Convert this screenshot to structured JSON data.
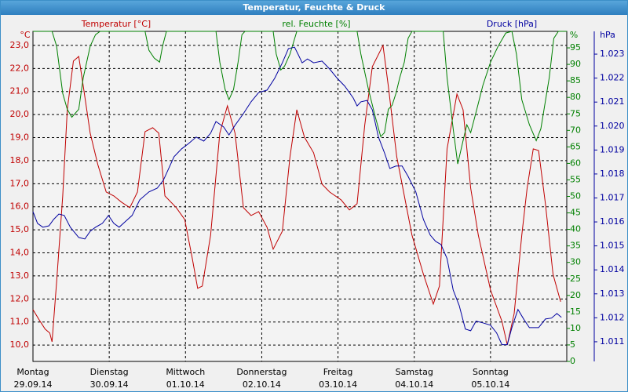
{
  "chart_data": {
    "type": "line",
    "title": "Temperatur, Feuchte & Druck",
    "y_unit": "°C",
    "y2_unit": "%",
    "y3_unit": "hPa",
    "xlim": [
      0,
      7
    ],
    "xticks": [
      {
        "value": 0,
        "label": "Montag"
      },
      {
        "value": 1,
        "label": "Dienstag"
      },
      {
        "value": 2,
        "label": "Mittwoch"
      },
      {
        "value": 3,
        "label": "Donnerstag"
      },
      {
        "value": 4,
        "label": "Freitag"
      },
      {
        "value": 5,
        "label": "Samstag"
      },
      {
        "value": 6,
        "label": "Sonntag"
      }
    ],
    "xtick_dates": [
      "29.09.14",
      "30.09.14",
      "01.10.14",
      "02.10.14",
      "03.10.14",
      "04.10.14",
      "05.10.14"
    ],
    "ylim": [
      9.29,
      23.61
    ],
    "yticks": [
      {
        "value": 10,
        "label": "10,0"
      },
      {
        "value": 11,
        "label": "11,0"
      },
      {
        "value": 12,
        "label": "12,0"
      },
      {
        "value": 13,
        "label": "13,0"
      },
      {
        "value": 14,
        "label": "14,0"
      },
      {
        "value": 15,
        "label": "15,0"
      },
      {
        "value": 16,
        "label": "16,0"
      },
      {
        "value": 17,
        "label": "17,0"
      },
      {
        "value": 18,
        "label": "18,0"
      },
      {
        "value": 19,
        "label": "19,0"
      },
      {
        "value": 20,
        "label": "20,0"
      },
      {
        "value": 21,
        "label": "21,0"
      },
      {
        "value": 22,
        "label": "22,0"
      },
      {
        "value": 23,
        "label": "23,0"
      }
    ],
    "y2lim": [
      0,
      100
    ],
    "y2ticks": [
      0,
      5,
      10,
      15,
      20,
      25,
      30,
      35,
      40,
      45,
      50,
      55,
      60,
      65,
      70,
      75,
      80,
      85,
      90,
      95
    ],
    "y3lim": [
      1.01018,
      1.02395
    ],
    "y3ticks": [
      1.011,
      1.012,
      1.013,
      1.014,
      1.015,
      1.016,
      1.017,
      1.018,
      1.019,
      {
        "value": 1.02,
        "label": "1.020"
      },
      1.021,
      1.022,
      1.023
    ],
    "grid": true,
    "series": [
      {
        "name": "Temperatur [°C]",
        "color": "#c00000",
        "axis": "y",
        "x": [
          0,
          0.08,
          0.16,
          0.22,
          0.25,
          0.31,
          0.39,
          0.45,
          0.53,
          0.6,
          0.66,
          0.75,
          0.85,
          0.96,
          1.06,
          1.16,
          1.27,
          1.37,
          1.47,
          1.57,
          1.65,
          1.73,
          1.88,
          1.99,
          2.09,
          2.16,
          2.22,
          2.33,
          2.45,
          2.55,
          2.65,
          2.76,
          2.86,
          2.96,
          3.07,
          3.15,
          3.27,
          3.37,
          3.46,
          3.56,
          3.68,
          3.79,
          3.89,
          4.04,
          4.15,
          4.25,
          4.35,
          4.45,
          4.59,
          4.66,
          4.77,
          4.87,
          4.97,
          5.12,
          5.25,
          5.33,
          5.43,
          5.56,
          5.64,
          5.74,
          5.84,
          6.0,
          6.15,
          6.22,
          6.31,
          6.41,
          6.48,
          6.56,
          6.63,
          6.72,
          6.82,
          6.92
        ],
        "values": [
          11.54,
          11.1,
          10.69,
          10.52,
          10.14,
          12.73,
          16.47,
          20.21,
          22.32,
          22.52,
          21.23,
          19.19,
          17.83,
          16.64,
          16.47,
          16.2,
          15.96,
          16.64,
          19.26,
          19.43,
          19.19,
          16.47,
          15.96,
          15.45,
          13.75,
          12.46,
          12.56,
          14.77,
          19.19,
          20.38,
          19.19,
          15.96,
          15.62,
          15.79,
          15.11,
          14.16,
          14.94,
          18.17,
          20.21,
          19.02,
          18.34,
          16.98,
          16.64,
          16.3,
          15.86,
          16.13,
          19.53,
          22.08,
          23.0,
          21.23,
          18.17,
          16.47,
          14.77,
          13.07,
          11.78,
          12.56,
          18.51,
          20.89,
          20.21,
          16.81,
          14.77,
          12.39,
          11.03,
          10.01,
          11.37,
          14.77,
          16.81,
          18.51,
          18.44,
          16.13,
          13.07,
          11.88
        ]
      },
      {
        "name": "rel. Feuchte [%]",
        "color": "#008000",
        "axis": "y2",
        "x": [
          0,
          0.25,
          0.31,
          0.39,
          0.45,
          0.51,
          0.6,
          0.66,
          0.75,
          0.82,
          0.88,
          1.47,
          1.52,
          1.59,
          1.66,
          1.7,
          1.75,
          2.4,
          2.45,
          2.52,
          2.57,
          2.63,
          2.69,
          2.74,
          2.78,
          3.15,
          3.19,
          3.25,
          3.3,
          3.37,
          3.46,
          4.25,
          4.3,
          4.4,
          4.49,
          4.56,
          4.61,
          4.66,
          4.71,
          4.76,
          4.81,
          4.87,
          4.92,
          4.97,
          5.38,
          5.43,
          5.51,
          5.57,
          5.64,
          5.69,
          5.74,
          5.82,
          5.9,
          6.0,
          6.1,
          6.2,
          6.28,
          6.34,
          6.41,
          6.51,
          6.6,
          6.66,
          6.77,
          6.83,
          6.89,
          7
        ],
        "values": [
          100,
          100,
          95.5,
          81.2,
          76.4,
          74.0,
          76.4,
          86.0,
          95.5,
          99.0,
          100,
          100,
          94.3,
          91.9,
          90.7,
          95.5,
          100,
          100,
          90.7,
          82.4,
          79.3,
          82.4,
          90.7,
          99.0,
          100,
          100,
          93.1,
          88.3,
          89.5,
          93.1,
          100,
          100,
          93.1,
          82.4,
          74.0,
          68.1,
          69.3,
          76.4,
          77.6,
          81.2,
          86.0,
          90.7,
          97.9,
          100,
          100,
          86.0,
          70.5,
          59.8,
          66.9,
          71.7,
          69.3,
          76.4,
          83.6,
          90.7,
          95.5,
          99.5,
          100,
          93.1,
          79.3,
          71.7,
          66.9,
          70.5,
          86.0,
          97.9,
          100,
          100
        ]
      },
      {
        "name": "Druck [hPa]",
        "color": "#0000a0",
        "axis": "y3",
        "x": [
          0,
          0.06,
          0.13,
          0.21,
          0.27,
          0.34,
          0.41,
          0.49,
          0.6,
          0.68,
          0.75,
          0.82,
          0.91,
          0.99,
          1.06,
          1.13,
          1.21,
          1.3,
          1.4,
          1.52,
          1.63,
          1.71,
          1.78,
          1.85,
          1.95,
          2.04,
          2.14,
          2.24,
          2.33,
          2.4,
          2.5,
          2.57,
          2.65,
          2.76,
          2.86,
          2.96,
          3.07,
          3.17,
          3.27,
          3.35,
          3.43,
          3.48,
          3.53,
          3.6,
          3.68,
          3.79,
          3.89,
          3.99,
          4.09,
          4.2,
          4.25,
          4.3,
          4.38,
          4.45,
          4.53,
          4.61,
          4.68,
          4.76,
          4.84,
          4.92,
          5.02,
          5.12,
          5.21,
          5.28,
          5.35,
          5.43,
          5.51,
          5.59,
          5.67,
          5.74,
          5.81,
          5.9,
          6.0,
          6.08,
          6.15,
          6.22,
          6.28,
          6.36,
          6.44,
          6.51,
          6.63,
          6.72,
          6.8,
          6.87,
          6.93
        ],
        "values": [
          1.01643,
          1.01594,
          1.01578,
          1.01584,
          1.0161,
          1.01633,
          1.01627,
          1.01578,
          1.01535,
          1.01529,
          1.01561,
          1.01578,
          1.01594,
          1.01627,
          1.01594,
          1.01578,
          1.01601,
          1.01627,
          1.01692,
          1.01725,
          1.01741,
          1.01774,
          1.01823,
          1.01872,
          1.01905,
          1.01927,
          1.01954,
          1.01937,
          1.0197,
          1.02019,
          1.01996,
          1.01963,
          1.02003,
          1.02052,
          1.02101,
          1.0214,
          1.0215,
          1.02199,
          1.02264,
          1.02323,
          1.02329,
          1.02297,
          1.02264,
          1.0228,
          1.02264,
          1.02271,
          1.02238,
          1.02199,
          1.02166,
          1.02117,
          1.02084,
          1.02101,
          1.02107,
          1.02068,
          1.01954,
          1.01888,
          1.01823,
          1.01833,
          1.01833,
          1.0179,
          1.01725,
          1.0161,
          1.01545,
          1.01519,
          1.01506,
          1.01447,
          1.01316,
          1.01251,
          1.01153,
          1.01146,
          1.01186,
          1.01179,
          1.01169,
          1.01137,
          1.01088,
          1.01088,
          1.01159,
          1.01235,
          1.01192,
          1.01159,
          1.01159,
          1.01195,
          1.01199,
          1.01218,
          1.01202
        ]
      }
    ]
  }
}
